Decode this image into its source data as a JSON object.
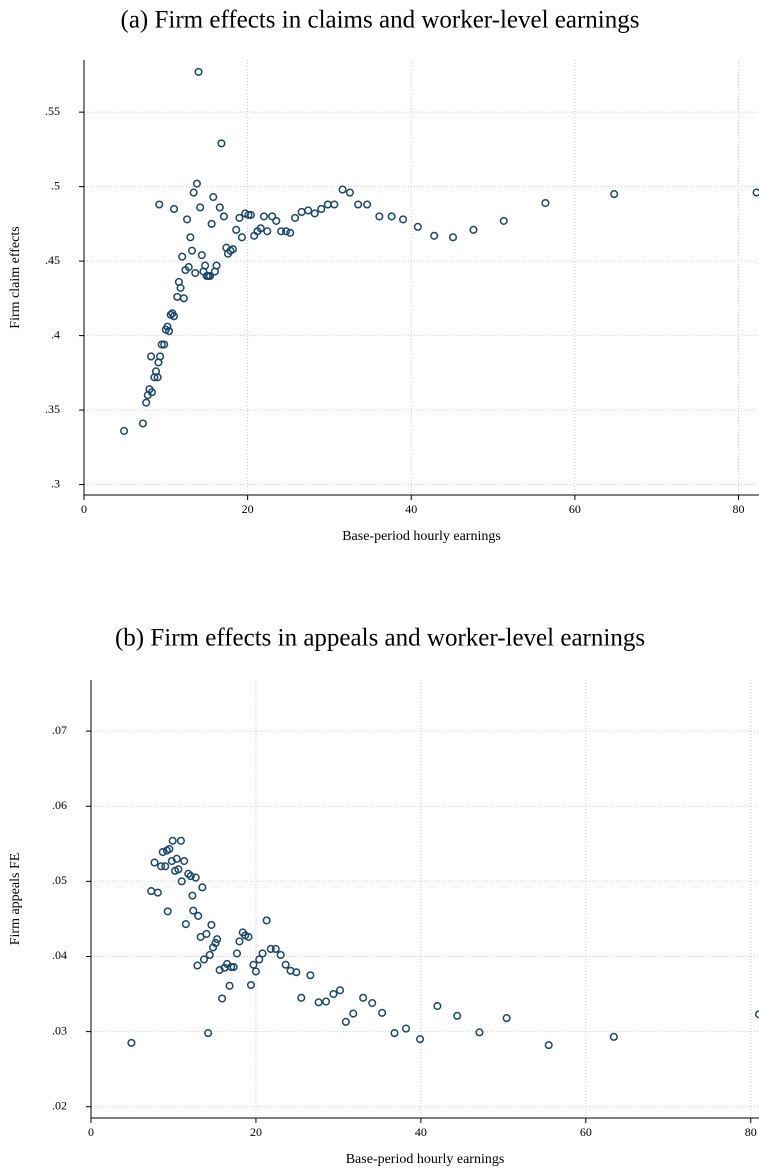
{
  "chart_data": [
    {
      "type": "scatter",
      "title": "(a) Firm effects in claims and worker-level earnings",
      "x_label": "Base-period hourly earnings",
      "y_label": "Firm claim effects",
      "color": "#1a476f",
      "grid": true,
      "xlim": [
        0,
        82.5
      ],
      "ylim": [
        0.293,
        0.585
      ],
      "xticks": [
        0,
        20,
        40,
        60,
        80
      ],
      "yticks": [
        {
          "value": 0.3,
          "label": ".3"
        },
        {
          "value": 0.35,
          "label": ".35"
        },
        {
          "value": 0.4,
          "label": ".4"
        },
        {
          "value": 0.45,
          "label": ".45"
        },
        {
          "value": 0.5,
          "label": ".5"
        },
        {
          "value": 0.55,
          "label": ".55"
        }
      ],
      "x": [
        4.9,
        7.2,
        7.6,
        7.8,
        8.0,
        8.3,
        8.2,
        8.6,
        8.8,
        9.0,
        9.1,
        9.3,
        9.5,
        9.8,
        9.2,
        10.0,
        10.2,
        10.4,
        10.6,
        10.8,
        11.0,
        11.0,
        11.4,
        11.6,
        11.8,
        12.0,
        12.2,
        12.4,
        12.6,
        12.8,
        13.0,
        13.2,
        13.4,
        13.6,
        13.8,
        14.0,
        14.2,
        14.4,
        14.6,
        14.8,
        15.0,
        15.2,
        15.4,
        15.6,
        15.8,
        16.0,
        16.2,
        16.6,
        16.8,
        17.1,
        17.4,
        17.6,
        17.9,
        18.2,
        18.6,
        19.0,
        19.3,
        19.7,
        20.1,
        20.4,
        20.8,
        21.2,
        21.6,
        22.0,
        22.4,
        23.0,
        23.5,
        24.1,
        24.7,
        25.2,
        25.8,
        26.6,
        27.4,
        28.2,
        29.0,
        29.8,
        30.6,
        31.6,
        32.5,
        33.5,
        34.6,
        36.1,
        37.6,
        39.0,
        40.8,
        42.8,
        45.1,
        47.6,
        51.3,
        56.4,
        64.8,
        82.2
      ],
      "values": [
        0.336,
        0.341,
        0.355,
        0.36,
        0.364,
        0.362,
        0.386,
        0.372,
        0.376,
        0.372,
        0.382,
        0.386,
        0.394,
        0.394,
        0.488,
        0.404,
        0.406,
        0.403,
        0.414,
        0.415,
        0.413,
        0.485,
        0.426,
        0.436,
        0.432,
        0.453,
        0.425,
        0.444,
        0.478,
        0.446,
        0.466,
        0.457,
        0.496,
        0.442,
        0.502,
        0.577,
        0.486,
        0.454,
        0.443,
        0.447,
        0.44,
        0.44,
        0.44,
        0.475,
        0.493,
        0.443,
        0.447,
        0.486,
        0.529,
        0.48,
        0.459,
        0.455,
        0.457,
        0.458,
        0.471,
        0.479,
        0.466,
        0.482,
        0.481,
        0.481,
        0.467,
        0.47,
        0.472,
        0.48,
        0.47,
        0.48,
        0.477,
        0.47,
        0.47,
        0.469,
        0.479,
        0.483,
        0.484,
        0.482,
        0.485,
        0.488,
        0.488,
        0.498,
        0.496,
        0.488,
        0.488,
        0.48,
        0.48,
        0.478,
        0.473,
        0.467,
        0.466,
        0.471,
        0.477,
        0.489,
        0.495,
        0.496
      ]
    },
    {
      "type": "scatter",
      "title": "(b) Firm effects in appeals and worker-level earnings",
      "x_label": "Base-period hourly earnings",
      "y_label": "Firm appeals FE",
      "color": "#1a476f",
      "grid": true,
      "xlim": [
        0,
        81
      ],
      "ylim": [
        0.0185,
        0.0768
      ],
      "xticks": [
        0,
        20,
        40,
        60,
        80
      ],
      "yticks": [
        {
          "value": 0.02,
          "label": ".02"
        },
        {
          "value": 0.03,
          "label": ".03"
        },
        {
          "value": 0.04,
          "label": ".04"
        },
        {
          "value": 0.05,
          "label": ".05"
        },
        {
          "value": 0.06,
          "label": ".06"
        },
        {
          "value": 0.07,
          "label": ".07"
        }
      ],
      "x": [
        4.9,
        7.3,
        7.7,
        8.1,
        8.5,
        8.7,
        9.0,
        9.2,
        9.5,
        9.3,
        9.8,
        9.9,
        10.2,
        10.4,
        10.6,
        10.9,
        11.0,
        11.3,
        11.5,
        11.8,
        12.1,
        12.3,
        12.4,
        12.7,
        13.0,
        12.9,
        13.3,
        13.5,
        13.7,
        14.0,
        14.2,
        14.4,
        14.6,
        14.8,
        15.1,
        15.3,
        15.6,
        15.9,
        16.2,
        16.5,
        16.8,
        17.0,
        17.3,
        17.7,
        18.0,
        18.4,
        18.7,
        19.1,
        19.4,
        19.7,
        20.0,
        20.4,
        20.8,
        21.3,
        21.8,
        22.4,
        23.0,
        23.6,
        24.2,
        24.9,
        25.5,
        26.6,
        27.6,
        28.5,
        29.4,
        30.2,
        30.9,
        31.8,
        33.0,
        34.1,
        35.3,
        36.8,
        38.2,
        39.9,
        42.0,
        44.4,
        47.1,
        50.4,
        55.5,
        63.4,
        81.0
      ],
      "values": [
        0.0285,
        0.0487,
        0.0525,
        0.0485,
        0.052,
        0.0539,
        0.052,
        0.0541,
        0.0543,
        0.046,
        0.0527,
        0.0554,
        0.0514,
        0.053,
        0.0516,
        0.0554,
        0.05,
        0.0527,
        0.0443,
        0.051,
        0.0507,
        0.0481,
        0.0461,
        0.0505,
        0.0454,
        0.0388,
        0.0426,
        0.0492,
        0.0396,
        0.043,
        0.0298,
        0.0402,
        0.0442,
        0.0412,
        0.0418,
        0.0423,
        0.0382,
        0.0344,
        0.0385,
        0.039,
        0.0361,
        0.0386,
        0.0386,
        0.0404,
        0.042,
        0.0432,
        0.0428,
        0.0426,
        0.0362,
        0.0389,
        0.038,
        0.0396,
        0.0404,
        0.0448,
        0.041,
        0.041,
        0.0402,
        0.0389,
        0.0381,
        0.0379,
        0.0345,
        0.0375,
        0.0339,
        0.034,
        0.035,
        0.0355,
        0.0313,
        0.0324,
        0.0345,
        0.0338,
        0.0325,
        0.0298,
        0.0304,
        0.029,
        0.0334,
        0.0321,
        0.0299,
        0.0318,
        0.0282,
        0.0293,
        0.0323
      ]
    }
  ]
}
